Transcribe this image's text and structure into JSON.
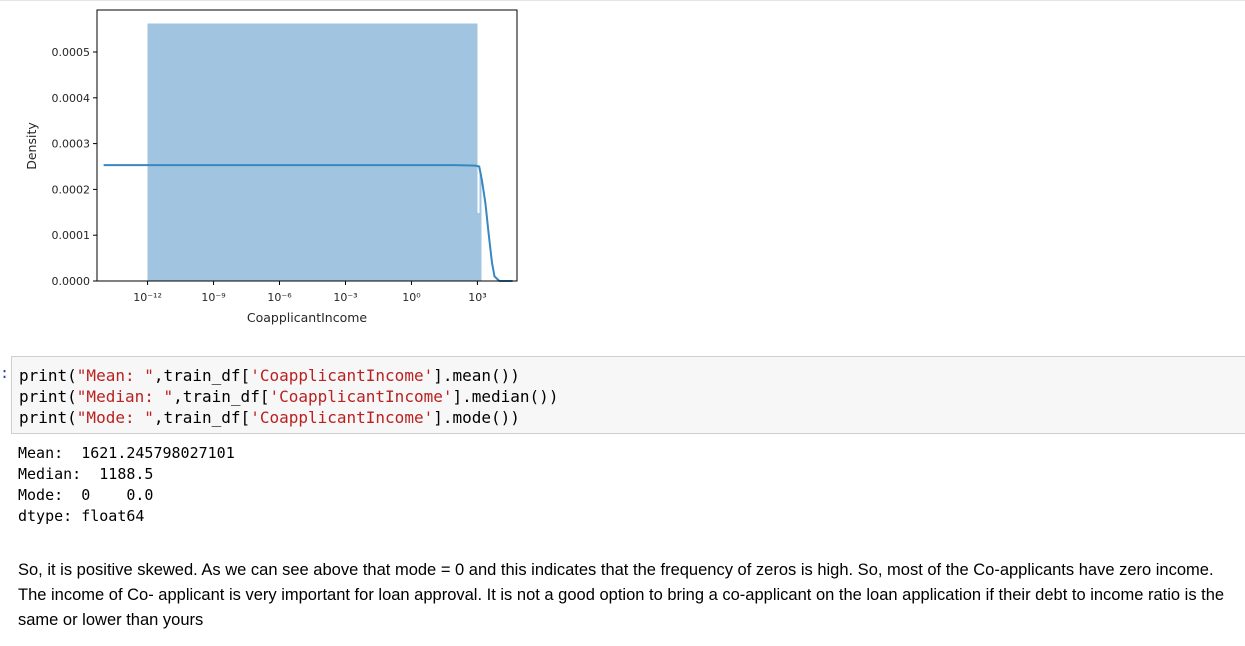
{
  "figure": {
    "chart_data": {
      "type": "histogram",
      "title": "",
      "xlabel": "CoapplicantIncome",
      "ylabel": "Density",
      "xscale": "log",
      "xticks": [
        "10⁻¹²",
        "10⁻⁹",
        "10⁻⁶",
        "10⁻³",
        "10⁰",
        "10³"
      ],
      "yticks": [
        "0.0000",
        "0.0001",
        "0.0002",
        "0.0003",
        "0.0004",
        "0.0005"
      ],
      "ylim": [
        0,
        0.00058
      ],
      "bars": [
        {
          "x_start": 1e-12,
          "x_end": 1000,
          "density": 0.000562
        },
        {
          "x_start": 1000,
          "x_end": 1250,
          "density": 0.000148
        },
        {
          "x_start": 1250,
          "x_end": 1500,
          "density": 0.000238
        }
      ],
      "kde_curve": [
        [
          1e-14,
          0.000253
        ],
        [
          1e-06,
          0.000253
        ],
        [
          100,
          0.000253
        ],
        [
          800,
          0.000252
        ],
        [
          1200,
          0.00025
        ],
        [
          1600,
          0.00022
        ],
        [
          2300,
          0.00017
        ],
        [
          3300,
          0.0001
        ],
        [
          4600,
          4e-05
        ],
        [
          6000,
          1e-05
        ],
        [
          10000,
          0.0
        ],
        [
          40000,
          0.0
        ]
      ],
      "grid": false,
      "colors": {
        "bar": "#a1c4e0",
        "kde": "#3a87c0"
      }
    }
  },
  "code_cell": {
    "lines": [
      {
        "prefix": "print(",
        "str1": "\"Mean: \"",
        "mid": ",train_df[",
        "str2": "'CoapplicantIncome'",
        "suffix": "].mean())"
      },
      {
        "prefix": "print(",
        "str1": "\"Median: \"",
        "mid": ",train_df[",
        "str2": "'CoapplicantIncome'",
        "suffix": "].median())"
      },
      {
        "prefix": "print(",
        "str1": "\"Mode: \"",
        "mid": ",train_df[",
        "str2": "'CoapplicantIncome'",
        "suffix": "].mode())"
      }
    ]
  },
  "output": {
    "lines": [
      "Mean:  1621.245798027101",
      "Median:  1188.5",
      "Mode:  0    0.0",
      "dtype: float64"
    ]
  },
  "markdown": {
    "text": "So, it is positive skewed. As we can see above that mode = 0 and this indicates that the frequency of zeros is high. So, most of the Co-applicants have zero income. The income of Co- applicant is very important for loan approval. It is not a good option to bring a co-applicant on the loan application if their debt to income ratio is the same or lower than yours"
  }
}
